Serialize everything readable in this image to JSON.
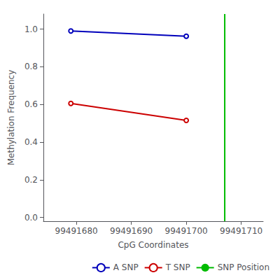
{
  "chart_data": {
    "type": "line",
    "xlabel": "CpG Coordinates",
    "ylabel": "Methylation Frequency",
    "series": [
      {
        "name": "A SNP",
        "type": "line",
        "color": "#0000bb",
        "marker": "hollow_circle",
        "x": [
          99491679,
          99491700
        ],
        "values": [
          0.99,
          0.962
        ]
      },
      {
        "name": "T SNP",
        "type": "line",
        "color": "#cc0000",
        "marker": "hollow_circle",
        "x": [
          99491679,
          99491700
        ],
        "values": [
          0.605,
          0.515
        ]
      },
      {
        "name": "SNP Position",
        "type": "vline",
        "color": "#00bb00",
        "x": [
          99491707
        ]
      }
    ],
    "xlim": [
      99491674,
      99491714
    ],
    "xticks": [
      99491680,
      99491690,
      99491700,
      99491710
    ],
    "ylim": [
      -0.02,
      1.08
    ],
    "yticks": [
      {
        "value": 0.0,
        "label": "0.0"
      },
      0.2,
      0.4,
      0.6,
      0.8,
      {
        "value": 1.0,
        "label": "1.0"
      }
    ],
    "grid": false,
    "legend": "lower right"
  }
}
